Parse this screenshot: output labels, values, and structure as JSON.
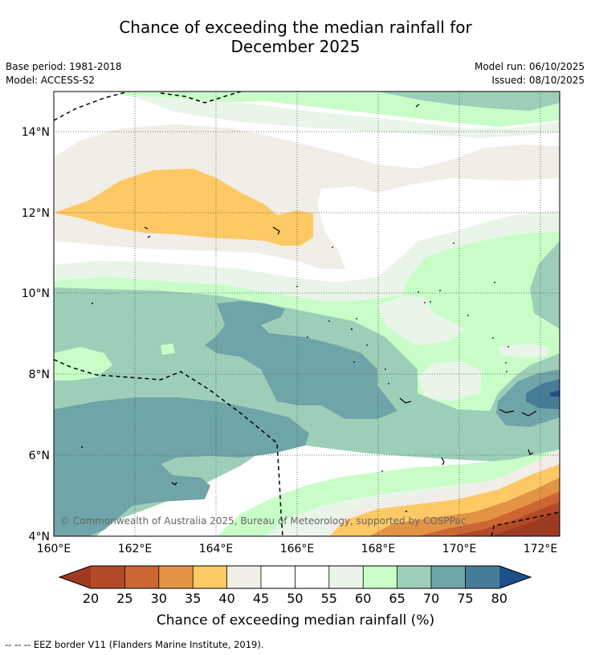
{
  "title_line1": "Chance of exceeding the median rainfall for",
  "title_line2": "December 2025",
  "base_period": "Base period: 1981-2018",
  "model": "Model: ACCESS-S2",
  "model_run": "Model run: 06/10/2025",
  "issued": "Issued: 08/10/2025",
  "copyright": "© Commonwealth of Australia 2025, Bureau of Meteorology, supported by COSPPac",
  "lat_labels": [
    "14°N",
    "12°N",
    "10°N",
    "8°N",
    "6°N",
    "4°N"
  ],
  "lon_labels": [
    "160°E",
    "162°E",
    "164°E",
    "166°E",
    "168°E",
    "170°E",
    "172°E"
  ],
  "colorbar": {
    "ticks": [
      "20",
      "25",
      "30",
      "35",
      "40",
      "45",
      "50",
      "55",
      "60",
      "65",
      "70",
      "75",
      "80"
    ],
    "colors": {
      "lt20": "#9e3a22",
      "b20_25": "#b24a28",
      "b25_30": "#cc6633",
      "b30_35": "#e29444",
      "b35_40": "#fdc965",
      "b40_45": "#f1ede7",
      "b45_50": "#ffffff",
      "b50_55": "#ffffff",
      "b55_60": "#eaf5ea",
      "b60_65": "#c8fdc8",
      "b65_70": "#9dcfb8",
      "b70_75": "#6fa4a8",
      "b75_80": "#467c98",
      "gt80": "#1c5088"
    },
    "label": "Chance of exceeding median rainfall (%)"
  },
  "legend_footnote": "--  --  -- EEZ border V11 (Flanders Marine Institute, 2019)."
}
